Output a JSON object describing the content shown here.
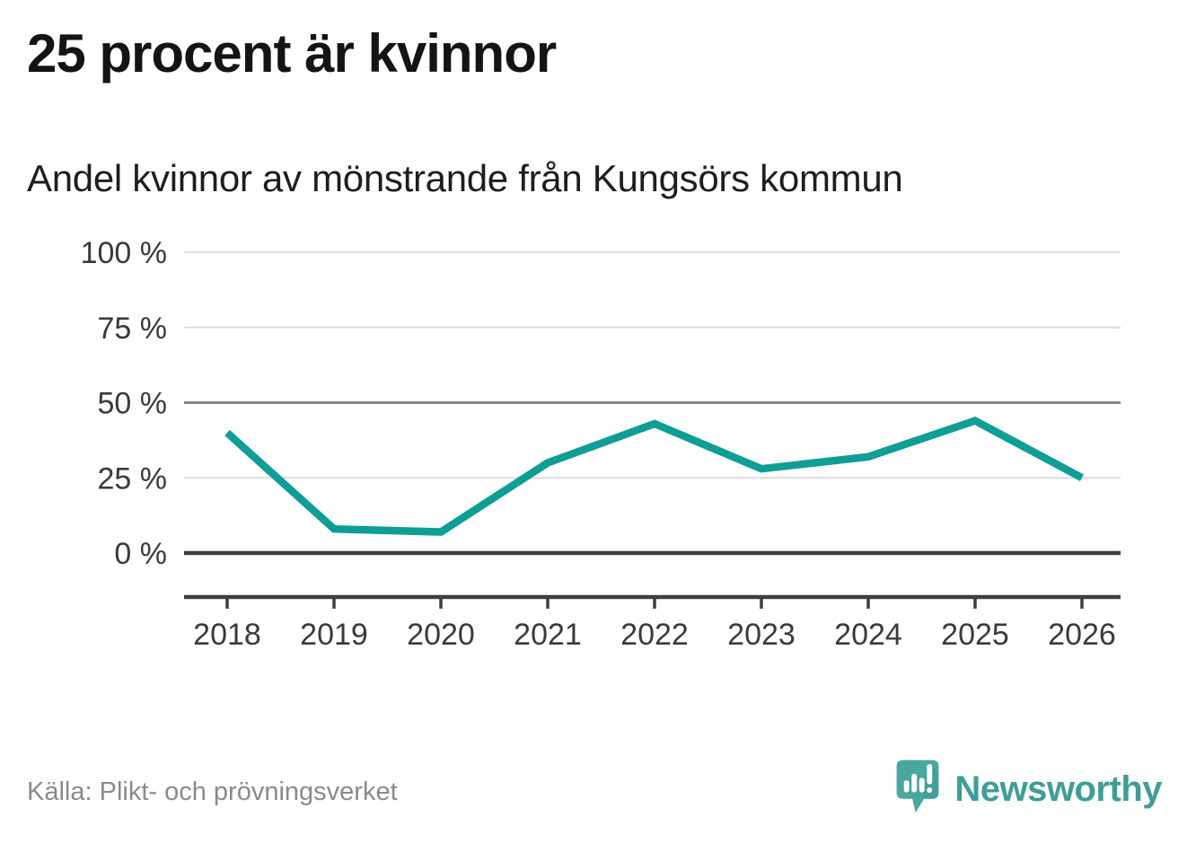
{
  "header": {
    "title": "25 procent är kvinnor",
    "subtitle": "Andel kvinnor av mönstrande från Kungsörs kommun"
  },
  "chart_data": {
    "type": "line",
    "title": "Andel kvinnor av mönstrande från Kungsörs kommun",
    "categories": [
      "2018",
      "2019",
      "2020",
      "2021",
      "2022",
      "2023",
      "2024",
      "2025",
      "2026"
    ],
    "series": [
      {
        "name": "Andel kvinnor av mönstrande",
        "values": [
          40,
          8,
          7,
          30,
          43,
          28,
          32,
          44,
          25
        ]
      }
    ],
    "unit": "%",
    "xlabel": "",
    "ylabel": "",
    "ylim": [
      0,
      100
    ],
    "yticks": [
      0,
      25,
      50,
      75,
      100
    ],
    "ytick_labels": [
      "0 %",
      "25 %",
      "50 %",
      "75 %",
      "100 %"
    ],
    "grid": true,
    "legend_position": "none",
    "line_color": "#0f9e95"
  },
  "footer": {
    "source": "Källa: Plikt- och prövningsverket",
    "brand": "Newsworthy"
  },
  "colors": {
    "accent_teal": "#0f9e95",
    "logo_teal": "#4ba69e",
    "logo_shade": "#3a958d",
    "wordmark_teal": "#3d9e97",
    "grid_light": "#e3e3e3",
    "grid_mid": "#858585",
    "axis_dark": "#3f3f3f",
    "tick_text": "#3a3a3a",
    "text_dark": "#141414",
    "text_gray": "#8a8a8e"
  }
}
